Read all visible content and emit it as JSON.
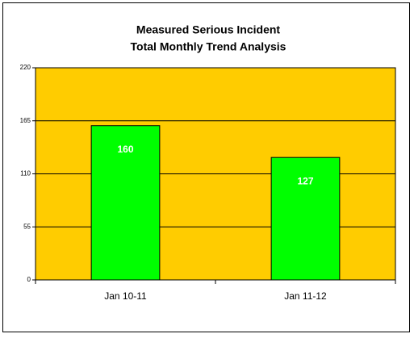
{
  "chart_data": {
    "type": "bar",
    "title": [
      "Measured Serious Incident",
      "Total Monthly Trend Analysis"
    ],
    "categories": [
      "Jan 10-11",
      "Jan 11-12"
    ],
    "values": [
      160,
      127
    ],
    "color": "#00ff00",
    "plot_background": "#ffcc00",
    "ylim": [
      0,
      220
    ],
    "yticks": [
      0,
      55,
      110,
      165,
      220
    ],
    "grid": true
  }
}
